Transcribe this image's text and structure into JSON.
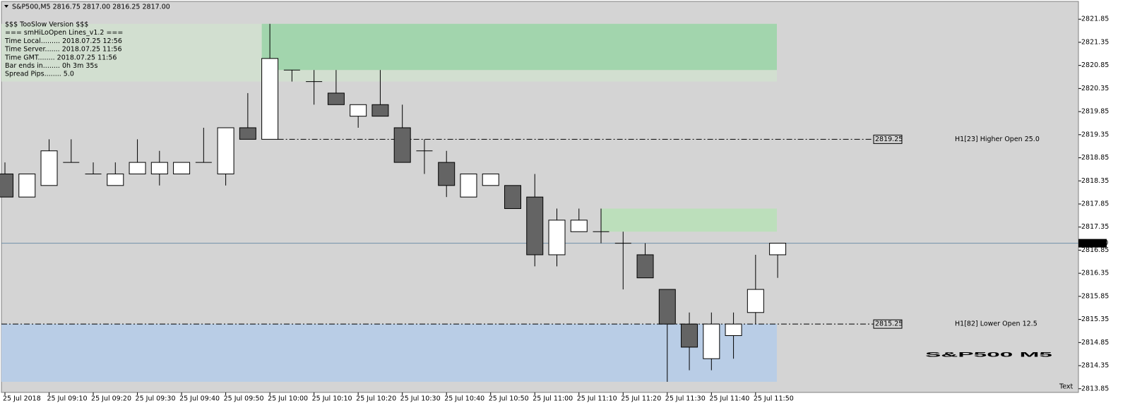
{
  "chart_data": {
    "type": "candlestick",
    "header": "S&P500,M5  2816.75 2817.00 2816.25 2817.00",
    "info_lines": [
      "$$$ TooSlow Version $$$",
      "=== smHiLoOpen Lines_v1.2 ===",
      "Time Local......... 2018.07.25 12:56",
      "Time Server....... 2018.07.25 11:56",
      "Time GMT........ 2018.07.25 11:56",
      "Bar ends in........ 0h 3m 35s",
      "Spread Pips........ 5.0"
    ],
    "watermark": "S&P500 M5",
    "corner_label": "Text",
    "categories": [
      "25 Jul 2018",
      null,
      "25 Jul 09:10",
      null,
      "25 Jul 09:20",
      null,
      "25 Jul 09:30",
      null,
      "25 Jul 09:40",
      null,
      "25 Jul 09:50",
      null,
      "25 Jul 10:00",
      null,
      "25 Jul 10:10",
      null,
      "25 Jul 10:20",
      null,
      "25 Jul 10:30",
      null,
      "25 Jul 10:40",
      null,
      "25 Jul 10:50",
      null,
      "25 Jul 11:00",
      null,
      "25 Jul 11:10",
      null,
      "25 Jul 11:20",
      null,
      "25 Jul 11:30",
      null,
      "25 Jul 11:40",
      null,
      "25 Jul 11:50",
      null
    ],
    "open": [
      2818.5,
      2818.0,
      2818.25,
      2818.75,
      2818.5,
      2818.25,
      2818.5,
      2818.5,
      2818.5,
      2818.75,
      2818.5,
      2819.5,
      2819.25,
      2820.75,
      2820.5,
      2820.25,
      2819.75,
      2820.0,
      2819.5,
      2819.0,
      2818.75,
      2818.0,
      2818.25,
      2818.25,
      2818.0,
      2816.75,
      2817.25,
      2817.25,
      2817.0,
      2816.75,
      2816.0,
      2815.25,
      2814.5,
      2815.0,
      2815.5,
      2816.75
    ],
    "high": [
      2818.75,
      2818.5,
      2819.25,
      2819.25,
      2818.75,
      2818.75,
      2819.25,
      2819.0,
      2818.75,
      2819.5,
      2819.5,
      2820.25,
      2821.75,
      2820.75,
      2820.75,
      2820.75,
      2820.0,
      2820.75,
      2820.0,
      2819.25,
      2819.0,
      2818.5,
      2818.5,
      2818.25,
      2818.5,
      2817.75,
      2817.75,
      2817.75,
      2817.25,
      2817.0,
      2816.0,
      2815.5,
      2815.5,
      2815.5,
      2816.75,
      2817.0
    ],
    "low": [
      2818.0,
      2818.0,
      2818.25,
      2818.75,
      2818.5,
      2818.25,
      2818.5,
      2818.25,
      2818.5,
      2818.75,
      2818.25,
      2819.25,
      2819.25,
      2820.5,
      2820.0,
      2820.0,
      2819.5,
      2819.75,
      2818.75,
      2818.5,
      2818.0,
      2818.0,
      2818.25,
      2817.75,
      2816.5,
      2816.5,
      2817.25,
      2817.0,
      2816.0,
      2816.25,
      2814.0,
      2814.25,
      2814.25,
      2814.5,
      2815.25,
      2816.25
    ],
    "close": [
      2818.0,
      2818.5,
      2819.0,
      2818.75,
      2818.5,
      2818.5,
      2818.75,
      2818.75,
      2818.75,
      2818.75,
      2819.5,
      2819.25,
      2821.0,
      2820.75,
      2820.5,
      2820.0,
      2820.0,
      2819.75,
      2818.75,
      2819.0,
      2818.25,
      2818.5,
      2818.5,
      2817.75,
      2816.75,
      2817.5,
      2817.5,
      2817.25,
      2817.0,
      2816.25,
      2815.25,
      2814.75,
      2815.25,
      2815.25,
      2816.0,
      2817.0
    ],
    "colors": {
      "up": "#ffffff",
      "down": "#646464",
      "outline": "#000000",
      "background": "#d4d4d4"
    },
    "ylim": [
      2813.77,
      2822.22
    ],
    "yticks": [
      2821.85,
      2821.35,
      2820.85,
      2820.35,
      2819.85,
      2819.35,
      2818.85,
      2818.35,
      2817.85,
      2817.35,
      2816.85,
      2816.35,
      2815.85,
      2815.35,
      2814.85,
      2814.35,
      2813.85
    ],
    "zones": [
      {
        "high": 2821.75,
        "low": 2820.5,
        "color": "#d2dfd0"
      },
      {
        "high": 2821.75,
        "low": 2820.75,
        "color": "#a2d5ad"
      },
      {
        "high": 2817.75,
        "low": 2817.25,
        "color": "#bcdfbb"
      },
      {
        "high": 2815.25,
        "low": 2814.0,
        "color": "#b9cde6"
      }
    ],
    "levels": [
      {
        "value": 2819.25,
        "label": "H1[23] Higher Open 25.0"
      },
      {
        "value": 2815.25,
        "label": "H1[82] Lower Open 12.5"
      }
    ],
    "current_price": {
      "value": 2817,
      "label": "2817.00"
    }
  }
}
